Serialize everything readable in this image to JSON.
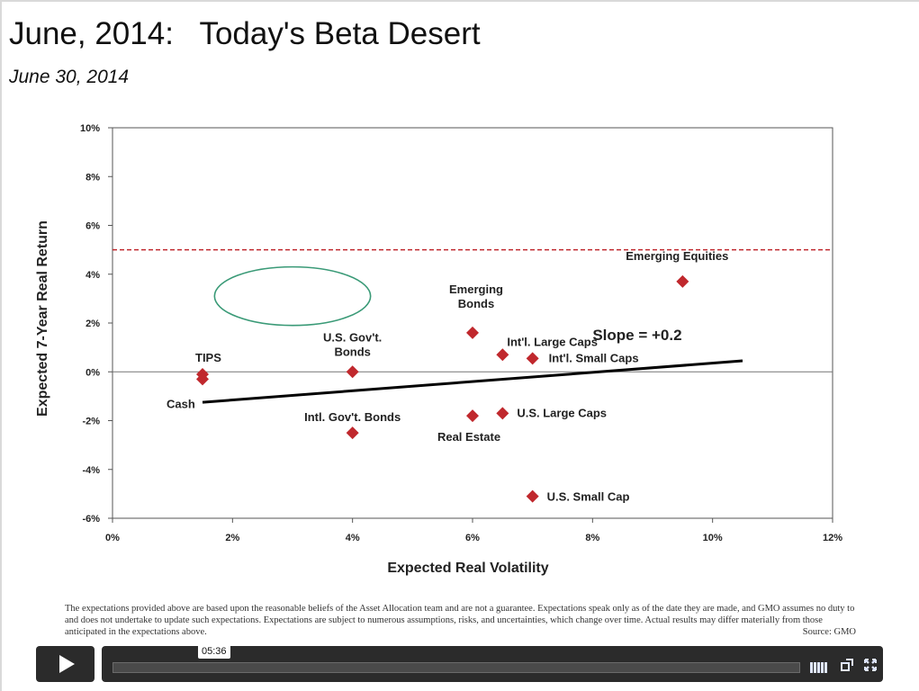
{
  "slide": {
    "title": "June, 2014:   Today's Beta Desert",
    "subtitle": "June 30, 2014",
    "footnote": "The expectations provided above are based upon the reasonable beliefs of the Asset Allocation team and are not a guarantee.  Expectations speak only as of the date they are made, and GMO assumes no duty to and does not undertake to update such expectations. Expectations are subject to numerous assumptions, risks, and uncertainties, which change over time. Actual results may differ materially  from those anticipated in the expectations above.",
    "source": "Source:  GMO"
  },
  "chart_data": {
    "type": "scatter",
    "xlabel": "Expected Real Volatility",
    "ylabel": "Expected 7-Year Real Return",
    "xlim": [
      0,
      12
    ],
    "ylim": [
      -6,
      10
    ],
    "xticks": [
      0,
      2,
      4,
      6,
      8,
      10,
      12
    ],
    "yticks": [
      -6,
      -4,
      -2,
      0,
      2,
      4,
      6,
      8,
      10
    ],
    "xtick_labels": [
      "0%",
      "2%",
      "4%",
      "6%",
      "8%",
      "10%",
      "12%"
    ],
    "ytick_labels": [
      "-6%",
      "-4%",
      "-2%",
      "0%",
      "2%",
      "4%",
      "6%",
      "8%",
      "10%"
    ],
    "marker_color": "#c0282d",
    "points": [
      {
        "label": "TIPS",
        "x": 1.5,
        "y": -0.1
      },
      {
        "label": "Cash",
        "x": 1.5,
        "y": -0.3
      },
      {
        "label": "U.S. Gov't. Bonds",
        "x": 4.0,
        "y": 0.0
      },
      {
        "label": "Intl. Gov't. Bonds",
        "x": 4.0,
        "y": -2.5
      },
      {
        "label": "Emerging Bonds",
        "x": 6.0,
        "y": 1.6
      },
      {
        "label": "Real Estate",
        "x": 6.0,
        "y": -1.8
      },
      {
        "label": "Int'l. Large Caps",
        "x": 6.5,
        "y": 0.7
      },
      {
        "label": "U.S. Large Caps",
        "x": 6.5,
        "y": -1.7
      },
      {
        "label": "Int'l. Small Caps",
        "x": 7.0,
        "y": 0.55
      },
      {
        "label": "U.S. Small Cap",
        "x": 7.0,
        "y": -5.1
      },
      {
        "label": "Emerging Equities",
        "x": 9.5,
        "y": 3.7
      }
    ],
    "trend_line": {
      "x": [
        1.5,
        10.5
      ],
      "y": [
        -1.25,
        0.45
      ],
      "label": "Slope = +0.2",
      "color": "#000000"
    },
    "hurdle_line": {
      "y": 5.0,
      "color": "#c0282d",
      "style": "dashed"
    },
    "highlight_ellipse": {
      "cx": 3.0,
      "cy": 3.1,
      "rx": 1.3,
      "ry": 1.2,
      "color": "#3a9a77"
    }
  },
  "player": {
    "time": "05:36",
    "play_icon": "play-icon",
    "hd_icon": "hd-icon",
    "share_icon": "share-icon",
    "fullscreen_icon": "fullscreen-icon"
  }
}
